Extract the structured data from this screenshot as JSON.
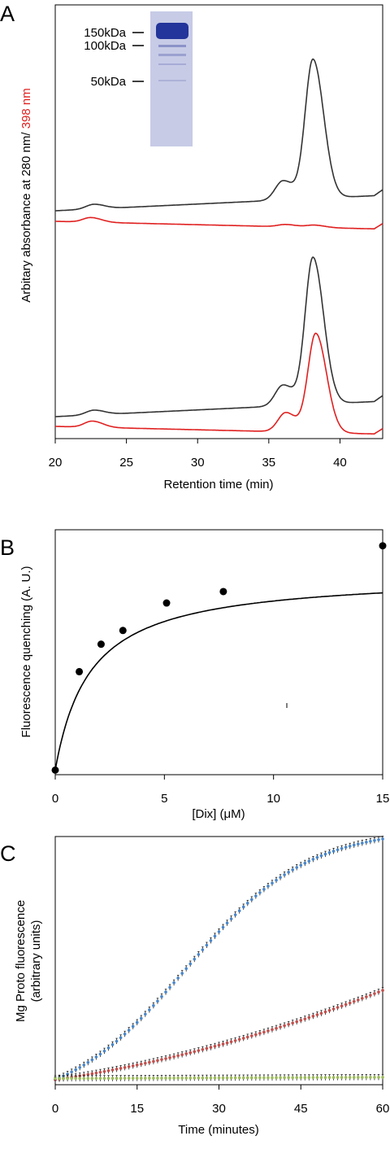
{
  "chart_data": [
    {
      "panel": "A",
      "type": "line",
      "xlabel": "Retention time (min)",
      "ylabel_prefix": "Arbitary absorbance at 280 nm/ ",
      "ylabel_suffix": "398 nm",
      "xlim": [
        20,
        43
      ],
      "xticks": [
        20,
        25,
        30,
        35,
        40
      ],
      "gel_markers": [
        "150kDa",
        "100kDa",
        "50kDa"
      ],
      "colors": {
        "a280": "#333333",
        "a398": "#e02020"
      },
      "series": [
        {
          "key": "top_280",
          "peaks": [
            [
              22.7,
              0.06
            ],
            [
              36.0,
              0.25
            ],
            [
              38.1,
              1.8
            ]
          ],
          "baseline": 0.0,
          "drift": 0.02
        },
        {
          "key": "top_398",
          "peaks": [
            [
              22.5,
              0.06
            ],
            [
              36.2,
              0.03
            ],
            [
              38.2,
              0.03
            ]
          ],
          "baseline": 0.0,
          "drift": -0.01
        },
        {
          "key": "bottom_280",
          "peaks": [
            [
              22.7,
              0.06
            ],
            [
              36.0,
              0.27
            ],
            [
              38.1,
              1.9
            ]
          ],
          "baseline": 0.0,
          "drift": 0.02
        },
        {
          "key": "bottom_398",
          "peaks": [
            [
              22.6,
              0.08
            ],
            [
              36.2,
              0.25
            ],
            [
              38.3,
              1.28
            ]
          ],
          "baseline": 0.0,
          "drift": -0.01
        }
      ]
    },
    {
      "panel": "B",
      "type": "scatter",
      "xlabel": "[Dix] (μM)",
      "ylabel": "Fluorescence quenching (A. U.)",
      "xlim": [
        0,
        15
      ],
      "xticks": [
        0,
        5,
        10,
        15
      ],
      "ylim": [
        0,
        1.07
      ],
      "points": [
        [
          0,
          0.02
        ],
        [
          1.1,
          0.45
        ],
        [
          2.1,
          0.57
        ],
        [
          3.1,
          0.63
        ],
        [
          5.1,
          0.75
        ],
        [
          7.7,
          0.8
        ],
        [
          15,
          1.0
        ]
      ],
      "fit": {
        "model": "hyperbolic",
        "bmax": 1.02,
        "kd": 1.6
      }
    },
    {
      "panel": "C",
      "type": "scatter",
      "xlabel": "Time (minutes)",
      "ylabel_line1": "Mg Proto fluorescence",
      "ylabel_line2": "(arbitrary units)",
      "xlim": [
        0,
        60
      ],
      "xticks": [
        0,
        15,
        30,
        45,
        60
      ],
      "ylim": [
        0,
        1.0
      ],
      "colors": {
        "blue": "#4a86c8",
        "red": "#c0504d",
        "green": "#9bbb59"
      },
      "series": [
        {
          "color": "blue",
          "model": "sigmoid",
          "base": 0.02,
          "amp": 0.99,
          "mid": 24,
          "k": 0.09
        },
        {
          "color": "red",
          "model": "linear",
          "start": 0.02,
          "end": 0.38
        },
        {
          "color": "green",
          "model": "flat",
          "start": 0.025,
          "end": 0.03
        }
      ]
    }
  ]
}
